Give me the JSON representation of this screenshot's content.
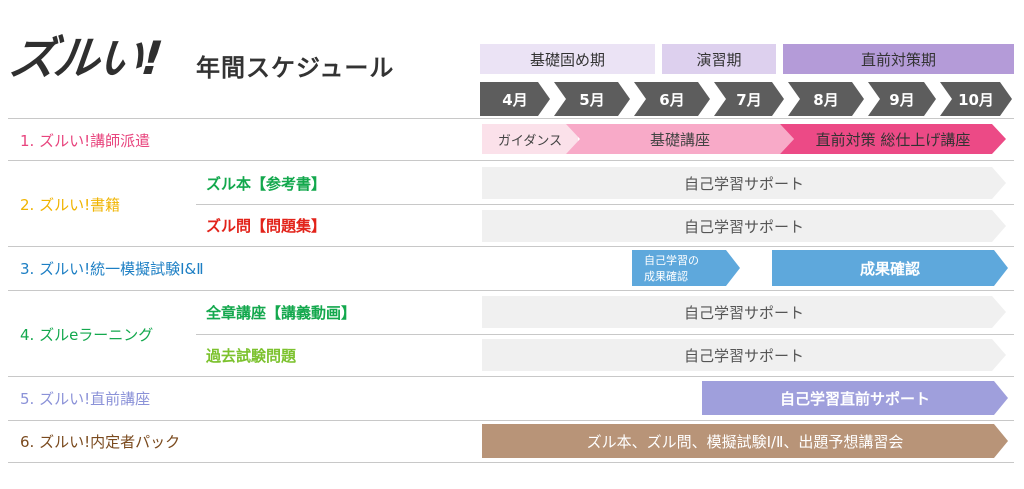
{
  "header": {
    "logo": "ズルい!",
    "subtitle": "年間スケジュール"
  },
  "phases": [
    "基礎固め期",
    "演習期",
    "直前対策期"
  ],
  "months": [
    "4月",
    "5月",
    "6月",
    "7月",
    "8月",
    "9月",
    "10月"
  ],
  "rows": {
    "r1": {
      "label": "1. ズルい!講師派遣",
      "guidance": "ガイダンス",
      "basic": "基礎講座",
      "final": "直前対策 総仕上げ講座"
    },
    "r2": {
      "label": "2. ズルい!書籍",
      "sub1": "ズル本【参考書】",
      "sub2": "ズル問【問題集】",
      "support": "自己学習サポート"
    },
    "r3": {
      "label": "3. ズルい!統一模擬試験Ⅰ&Ⅱ",
      "check_small_1": "自己学習の",
      "check_small_2": "成果確認",
      "check": "成果確認"
    },
    "r4": {
      "label": "4. ズルeラーニング",
      "sub1": "全章講座【講義動画】",
      "sub2": "過去試験問題",
      "support": "自己学習サポート"
    },
    "r5": {
      "label": "5. ズルい!直前講座",
      "bar": "自己学習直前サポート"
    },
    "r6": {
      "label": "6. ズルい!内定者パック",
      "bar": "ズル本、ズル問、模擬試験Ⅰ/Ⅱ、出題予想講習会"
    }
  },
  "colors": {
    "phase_basic": "#ebe3f5",
    "phase_practice": "#ddd0ee",
    "phase_final": "#b49bd8",
    "month_arrow": "#5d5d5d",
    "r1": "#e8457e",
    "r2": "#f0b400",
    "r3": "#1d7fc4",
    "r4": "#13a84d",
    "r4_sub2": "#7cc22e",
    "r5": "#8b92d8",
    "r6": "#7a4a1e",
    "r2_sub1": "#13a84d",
    "r2_sub2": "#e2231a",
    "guidance": "#fbe1ea",
    "basic": "#f8aac8",
    "final": "#ec4a86",
    "check": "#5ea8dc",
    "r5_bar": "#9f9fdc",
    "r6_bar": "#b89478"
  }
}
